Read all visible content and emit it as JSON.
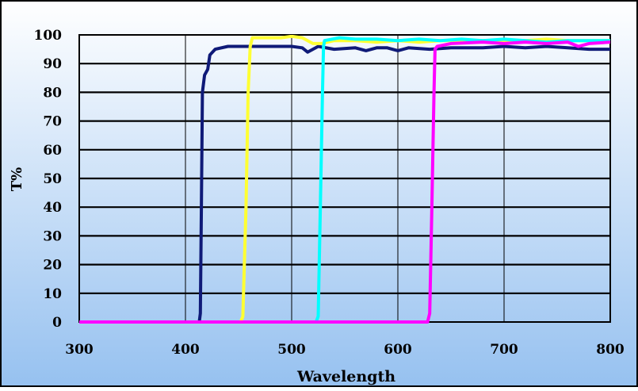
{
  "chart_data": {
    "type": "line",
    "title": "",
    "xlabel": "Wavelength",
    "ylabel": "T%",
    "xlim": [
      300,
      800
    ],
    "ylim": [
      0,
      100
    ],
    "x_ticks": [
      "300",
      "400",
      "500",
      "600",
      "700",
      "800"
    ],
    "y_ticks": [
      "0",
      "10",
      "20",
      "30",
      "40",
      "50",
      "60",
      "70",
      "80",
      "90",
      "100"
    ],
    "grid": true,
    "legend": "none",
    "background": [
      "#ffffff",
      "#96c1f0"
    ],
    "series": [
      {
        "color": "#0f1a78",
        "points": [
          [
            300,
            0
          ],
          [
            413,
            0
          ],
          [
            414,
            3
          ],
          [
            415,
            40
          ],
          [
            416,
            80
          ],
          [
            418,
            86
          ],
          [
            421,
            88
          ],
          [
            423,
            93
          ],
          [
            428,
            95
          ],
          [
            440,
            96
          ],
          [
            460,
            96
          ],
          [
            480,
            96
          ],
          [
            500,
            96
          ],
          [
            510,
            95.5
          ],
          [
            515,
            94
          ],
          [
            520,
            95
          ],
          [
            525,
            96
          ],
          [
            540,
            95
          ],
          [
            560,
            95.5
          ],
          [
            570,
            94.5
          ],
          [
            580,
            95.5
          ],
          [
            590,
            95.5
          ],
          [
            600,
            94.5
          ],
          [
            610,
            95.5
          ],
          [
            630,
            95
          ],
          [
            650,
            95.5
          ],
          [
            680,
            95.5
          ],
          [
            700,
            96
          ],
          [
            720,
            95.5
          ],
          [
            740,
            96
          ],
          [
            760,
            95.5
          ],
          [
            780,
            95
          ],
          [
            800,
            95
          ]
        ]
      },
      {
        "color": "#ffff33",
        "points": [
          [
            300,
            0
          ],
          [
            452,
            0
          ],
          [
            454,
            2
          ],
          [
            457,
            40
          ],
          [
            459,
            80
          ],
          [
            461,
            96
          ],
          [
            463,
            99
          ],
          [
            475,
            99
          ],
          [
            490,
            99
          ],
          [
            500,
            99.5
          ],
          [
            510,
            99
          ],
          [
            520,
            97
          ],
          [
            528,
            97
          ],
          [
            540,
            98
          ],
          [
            560,
            98
          ],
          [
            580,
            97.5
          ],
          [
            600,
            98
          ],
          [
            620,
            97.5
          ],
          [
            640,
            98
          ],
          [
            660,
            98
          ],
          [
            680,
            98
          ],
          [
            700,
            98
          ],
          [
            720,
            98
          ],
          [
            740,
            98.5
          ],
          [
            760,
            98
          ],
          [
            780,
            98
          ],
          [
            800,
            98
          ]
        ]
      },
      {
        "color": "#00ffff",
        "points": [
          [
            300,
            0
          ],
          [
            523,
            0
          ],
          [
            525,
            2
          ],
          [
            527,
            40
          ],
          [
            529,
            80
          ],
          [
            530,
            96
          ],
          [
            531,
            98
          ],
          [
            545,
            99
          ],
          [
            560,
            98.5
          ],
          [
            580,
            98.5
          ],
          [
            600,
            98
          ],
          [
            620,
            98.5
          ],
          [
            640,
            98
          ],
          [
            660,
            98.5
          ],
          [
            680,
            98
          ],
          [
            700,
            98.5
          ],
          [
            720,
            98
          ],
          [
            740,
            97.5
          ],
          [
            760,
            98
          ],
          [
            780,
            98
          ],
          [
            800,
            98
          ]
        ]
      },
      {
        "color": "#ff00ff",
        "points": [
          [
            300,
            0
          ],
          [
            500,
            0
          ],
          [
            628,
            0
          ],
          [
            630,
            3
          ],
          [
            632,
            40
          ],
          [
            634,
            80
          ],
          [
            635,
            95
          ],
          [
            637,
            96
          ],
          [
            650,
            97
          ],
          [
            680,
            97.5
          ],
          [
            700,
            97
          ],
          [
            720,
            97.5
          ],
          [
            740,
            97
          ],
          [
            760,
            97.5
          ],
          [
            770,
            96
          ],
          [
            780,
            97
          ],
          [
            800,
            97.5
          ]
        ]
      }
    ]
  }
}
